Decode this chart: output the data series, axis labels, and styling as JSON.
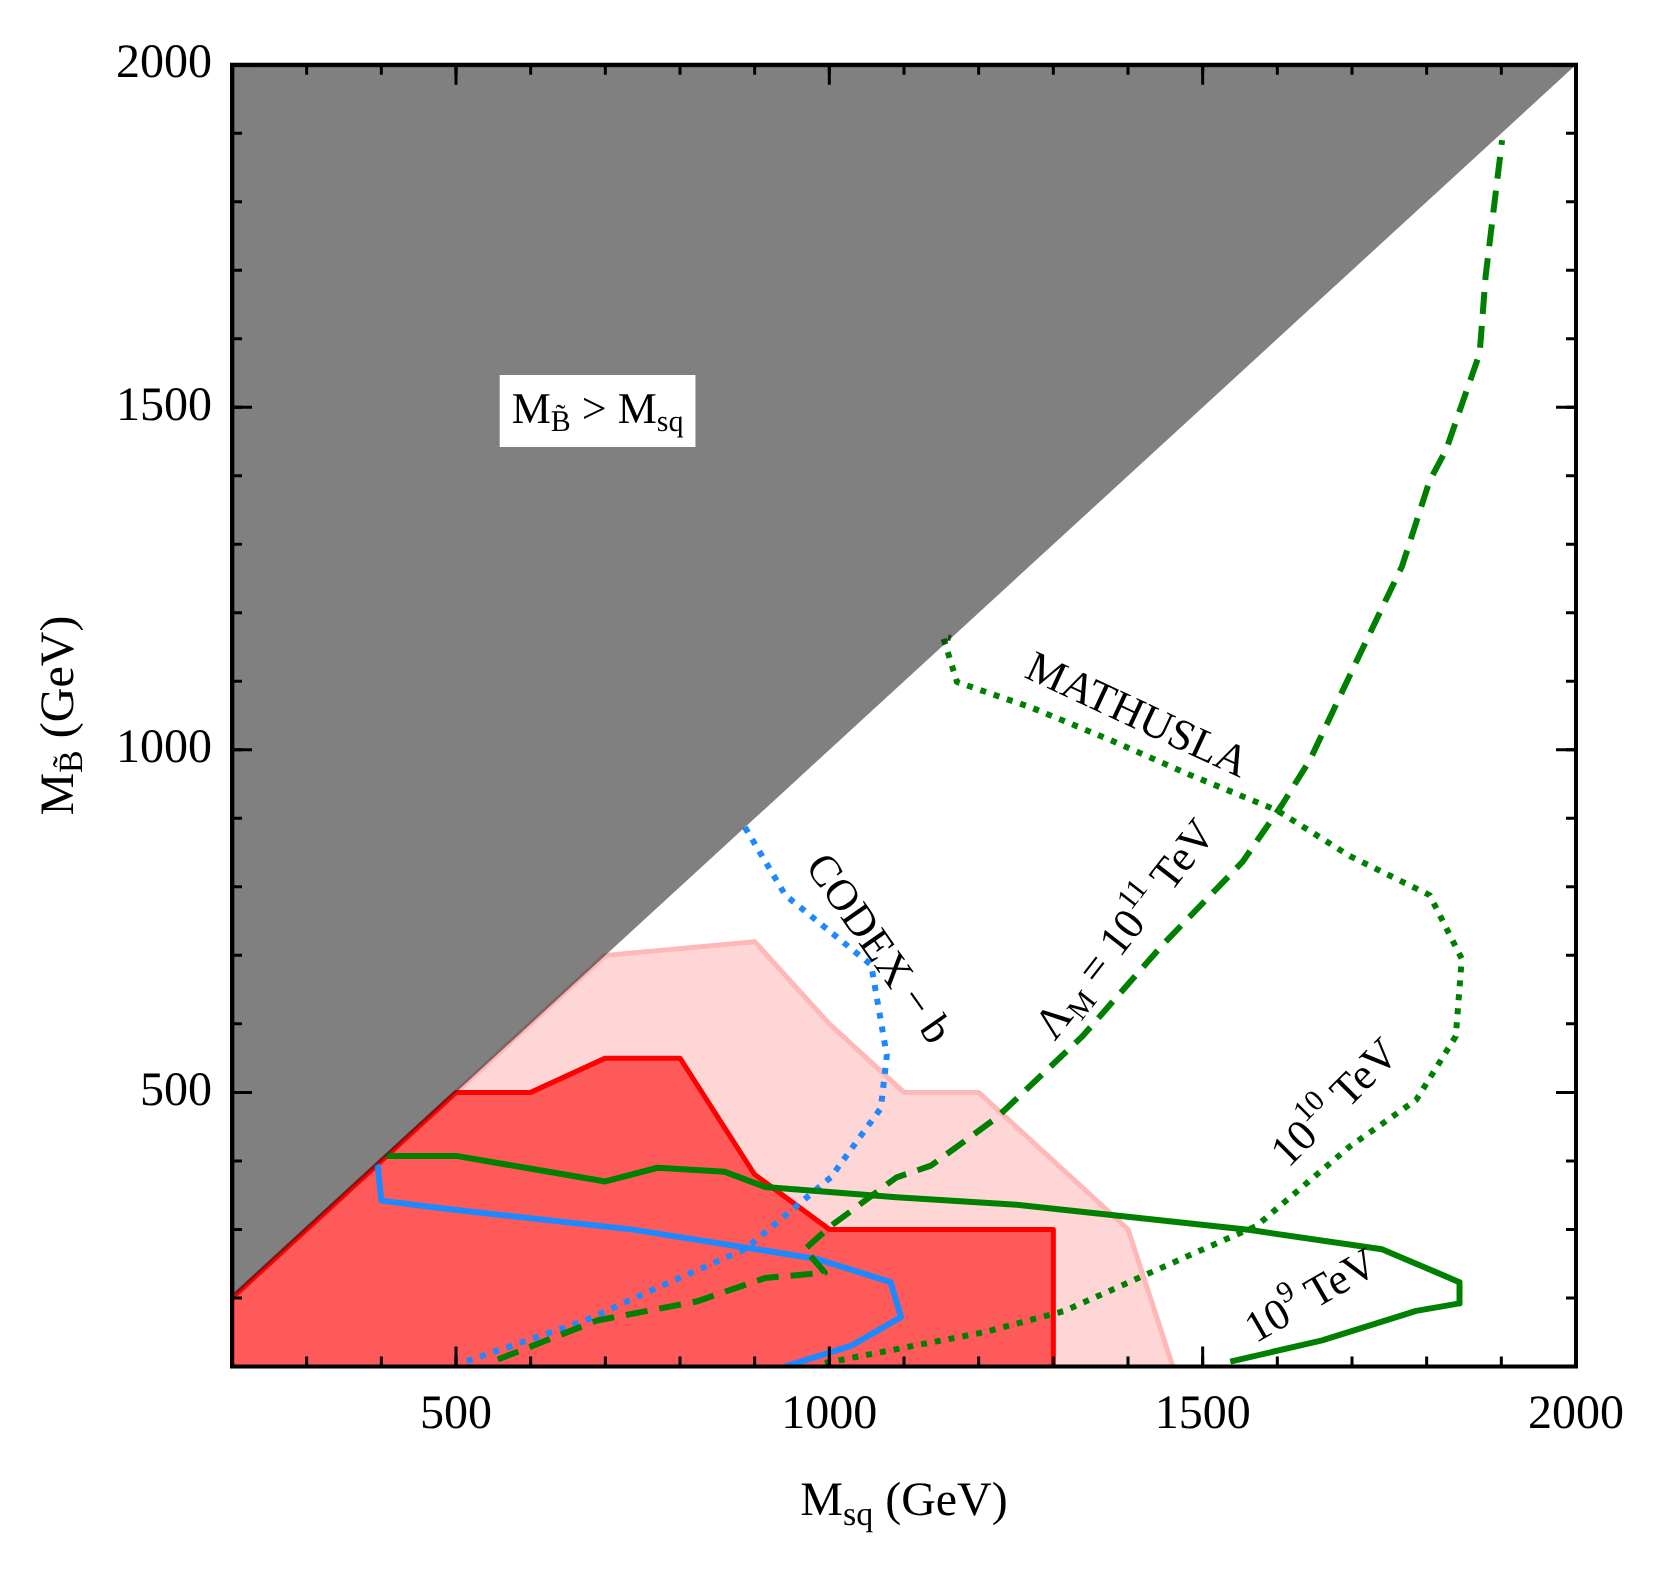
{
  "chart_data": {
    "type": "line",
    "xlabel": "M$_{sq}$ (GeV)",
    "ylabel": "M$_{B̃}$ (GeV)",
    "xlim": [
      200,
      2000
    ],
    "ylim": [
      100,
      2000
    ],
    "xticks": [
      500,
      1000,
      1500,
      2000
    ],
    "yticks": [
      500,
      1000,
      1500,
      2000
    ],
    "grid": false,
    "legend": false,
    "marker": "none",
    "series": [
      {
        "type": "area",
        "color": "#ffb8b8",
        "x": [
          200,
          200,
          700,
          900,
          1000,
          1100,
          1200,
          1400,
          1460
        ],
        "values": [
          100,
          200,
          700,
          720,
          600,
          500,
          500,
          300,
          100
        ]
      },
      {
        "type": "area",
        "color": "#ff0000",
        "x": [
          200,
          200,
          500,
          600,
          700,
          800,
          900,
          1000,
          1300,
          1300
        ],
        "values": [
          100,
          200,
          500,
          500,
          550,
          550,
          380,
          300,
          300,
          100
        ]
      },
      {
        "color": "#1e88ff",
        "line_style": "dotted",
        "x": [
          887,
          941,
          1056,
          1077,
          1069,
          1002,
          887,
          770,
          673,
          513
        ],
        "values": [
          887,
          788,
          686,
          554,
          477,
          376,
          271,
          215,
          167,
          107
        ]
      },
      {
        "color": "#1e88ff",
        "line_style": "solid",
        "x": [
          395,
          400,
          486,
          735,
          983,
          1082,
          1096,
          1029,
          941
        ],
        "values": [
          395,
          342,
          330,
          300,
          257,
          223,
          172,
          130,
          100
        ]
      },
      {
        "color": "#008000",
        "line_style": "solid",
        "x": [
          406,
          502,
          593,
          700,
          770,
          860,
          914,
          1090,
          1251,
          1564,
          1740,
          1844,
          1844,
          1786,
          1660,
          1537
        ],
        "values": [
          407,
          407,
          390,
          370,
          390,
          384,
          362,
          347,
          336,
          299,
          271,
          223,
          192,
          181,
          138,
          107
        ]
      },
      {
        "color": "#008000",
        "line_style": "dashed",
        "x": [
          556,
          689,
          823,
          914,
          994,
          967,
          1002,
          1090,
          1136,
          1224,
          1339,
          1446,
          1553,
          1607,
          1644,
          1705,
          1767,
          1804,
          1826,
          1871,
          1879,
          1901
        ],
        "values": [
          110,
          167,
          195,
          229,
          237,
          271,
          305,
          376,
          393,
          463,
          582,
          715,
          836,
          921,
          986,
          1127,
          1268,
          1393,
          1438,
          1579,
          1692,
          1890
        ]
      },
      {
        "color": "#008000",
        "line_style": "dotted",
        "x": [
          994,
          1208,
          1315,
          1484,
          1572,
          1697,
          1786,
          1839,
          1847,
          1804,
          1697,
          1599,
          1484,
          1377,
          1270,
          1171,
          1152,
          1163
        ],
        "values": [
          105,
          150,
          181,
          263,
          305,
          421,
          489,
          582,
          695,
          788,
          845,
          912,
          963,
          1014,
          1062,
          1099,
          1166,
          1163
        ]
      },
      {
        "type": "area",
        "color": "#242424",
        "x": [
          200,
          200,
          2000
        ],
        "values": [
          200,
          2000,
          2000
        ]
      }
    ],
    "annotations": [
      "M$_{B̃}$ > M$_{sq}$",
      "CODEX − b",
      "MATHUSLA",
      "Λ$_{M}$ = 10$^{11}$ TeV",
      "10$^{10}$ TeV",
      "10$^{9}$ TeV"
    ]
  }
}
